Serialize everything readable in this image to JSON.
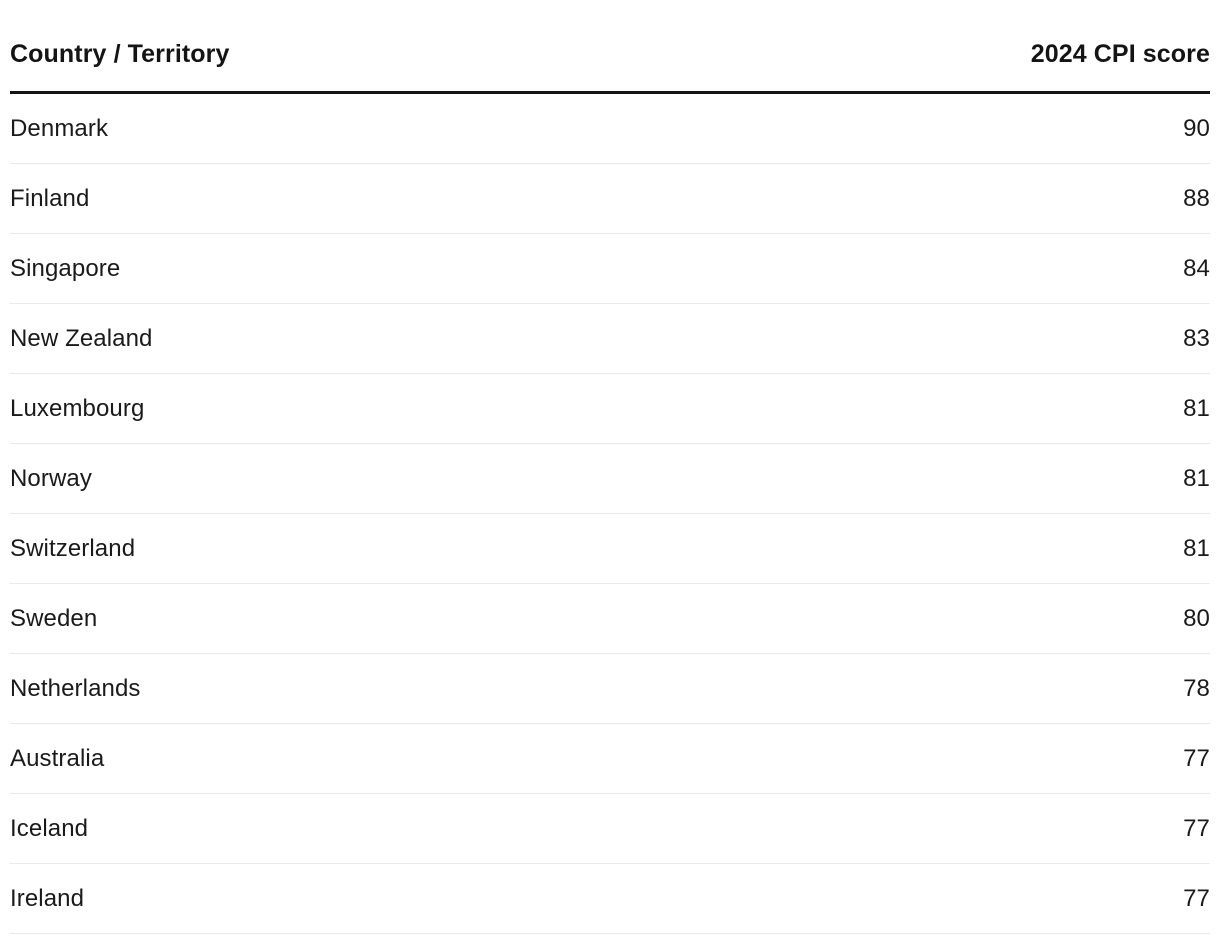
{
  "table": {
    "header": {
      "country_label": "Country / Territory",
      "score_label": "2024 CPI score"
    },
    "rows": [
      {
        "country": "Denmark",
        "score": "90"
      },
      {
        "country": "Finland",
        "score": "88"
      },
      {
        "country": "Singapore",
        "score": "84"
      },
      {
        "country": "New Zealand",
        "score": "83"
      },
      {
        "country": "Luxembourg",
        "score": "81"
      },
      {
        "country": "Norway",
        "score": "81"
      },
      {
        "country": "Switzerland",
        "score": "81"
      },
      {
        "country": "Sweden",
        "score": "80"
      },
      {
        "country": "Netherlands",
        "score": "78"
      },
      {
        "country": "Australia",
        "score": "77"
      },
      {
        "country": "Iceland",
        "score": "77"
      },
      {
        "country": "Ireland",
        "score": "77"
      }
    ]
  },
  "chart_data": {
    "type": "table",
    "title": "",
    "columns": [
      "Country / Territory",
      "2024 CPI score"
    ],
    "rows": [
      [
        "Denmark",
        90
      ],
      [
        "Finland",
        88
      ],
      [
        "Singapore",
        84
      ],
      [
        "New Zealand",
        83
      ],
      [
        "Luxembourg",
        81
      ],
      [
        "Norway",
        81
      ],
      [
        "Switzerland",
        81
      ],
      [
        "Sweden",
        80
      ],
      [
        "Netherlands",
        78
      ],
      [
        "Australia",
        77
      ],
      [
        "Iceland",
        77
      ],
      [
        "Ireland",
        77
      ]
    ]
  },
  "colors": {
    "background": "#ffffff",
    "text": "#1a1a1a",
    "header_rule": "#141414",
    "row_divider": "#e9e9e9"
  }
}
